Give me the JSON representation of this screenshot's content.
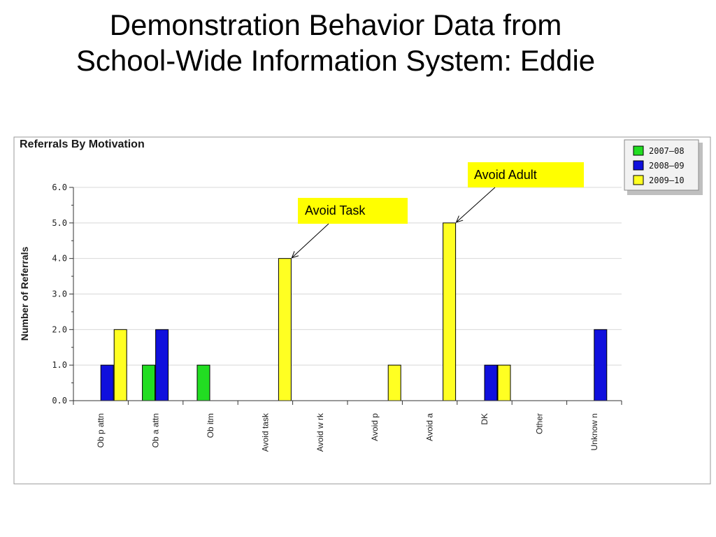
{
  "slide": {
    "title_line1": "Demonstration Behavior Data from",
    "title_line2": "School-Wide Information System: Eddie"
  },
  "chart_data": {
    "type": "bar",
    "title": "Referrals By Motivation",
    "xlabel": "",
    "ylabel": "Number of Referrals",
    "ylim": [
      0,
      6
    ],
    "yticks": [
      "0.0",
      "1.0",
      "2.0",
      "3.0",
      "4.0",
      "5.0",
      "6.0"
    ],
    "grid": true,
    "legend_position": "top-right",
    "categories": [
      "Ob p attn",
      "Ob a attn",
      "Ob itm",
      "Avoid task",
      "Avoid w rk",
      "Avoid p",
      "Avoid a",
      "DK",
      "Other",
      "Unknow n"
    ],
    "series": [
      {
        "name": "2007–08",
        "color": "#22dd22",
        "values": [
          0,
          1,
          1,
          0,
          0,
          0,
          0,
          0,
          0,
          0
        ]
      },
      {
        "name": "2008–09",
        "color": "#1010dd",
        "values": [
          1,
          2,
          0,
          0,
          0,
          0,
          0,
          1,
          0,
          2
        ]
      },
      {
        "name": "2009–10",
        "color": "#ffff22",
        "values": [
          2,
          0,
          0,
          4,
          0,
          1,
          5,
          1,
          0,
          0
        ]
      }
    ],
    "annotations": [
      {
        "text": "Avoid Task",
        "target_category": "Avoid task",
        "target_value": 4
      },
      {
        "text": "Avoid Adult",
        "target_category": "Avoid a",
        "target_value": 5
      }
    ]
  }
}
